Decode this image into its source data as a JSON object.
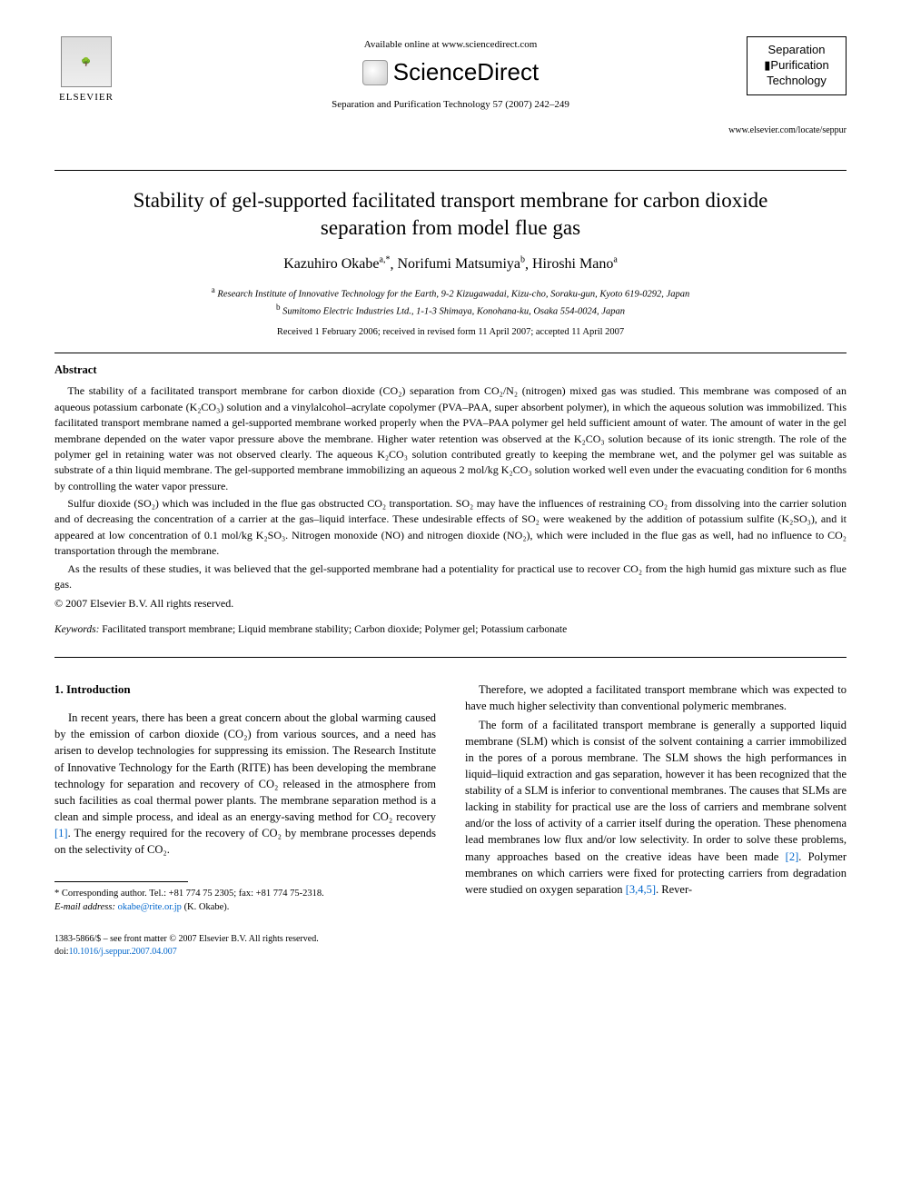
{
  "header": {
    "availableText": "Available online at www.sciencedirect.com",
    "scienceDirect": "ScienceDirect",
    "elsevierLabel": "ELSEVIER",
    "journalRef": "Separation and Purification Technology 57 (2007) 242–249",
    "journalBoxLine1": "Separation",
    "journalBoxLine2": "▮Purification",
    "journalBoxLine3": "Technology",
    "journalUrl": "www.elsevier.com/locate/seppur"
  },
  "title": "Stability of gel-supported facilitated transport membrane for carbon dioxide separation from model flue gas",
  "authors": [
    {
      "name": "Kazuhiro Okabe",
      "marks": "a,*"
    },
    {
      "name": "Norifumi Matsumiya",
      "marks": "b"
    },
    {
      "name": "Hiroshi Mano",
      "marks": "a"
    }
  ],
  "affiliations": [
    {
      "mark": "a",
      "text": "Research Institute of Innovative Technology for the Earth, 9-2 Kizugawadai, Kizu-cho, Soraku-gun, Kyoto 619-0292, Japan"
    },
    {
      "mark": "b",
      "text": "Sumitomo Electric Industries Ltd., 1-1-3 Shimaya, Konohana-ku, Osaka 554-0024, Japan"
    }
  ],
  "received": "Received 1 February 2006; received in revised form 11 April 2007; accepted 11 April 2007",
  "abstractLabel": "Abstract",
  "abstractParas": [
    "The stability of a facilitated transport membrane for carbon dioxide (CO₂) separation from CO₂/N₂ (nitrogen) mixed gas was studied. This membrane was composed of an aqueous potassium carbonate (K₂CO₃) solution and a vinylalcohol–acrylate copolymer (PVA–PAA, super absorbent polymer), in which the aqueous solution was immobilized. This facilitated transport membrane named a gel-supported membrane worked properly when the PVA–PAA polymer gel held sufficient amount of water. The amount of water in the gel membrane depended on the water vapor pressure above the membrane. Higher water retention was observed at the K₂CO₃ solution because of its ionic strength. The role of the polymer gel in retaining water was not observed clearly. The aqueous K₂CO₃ solution contributed greatly to keeping the membrane wet, and the polymer gel was suitable as substrate of a thin liquid membrane. The gel-supported membrane immobilizing an aqueous 2 mol/kg K₂CO₃ solution worked well even under the evacuating condition for 6 months by controlling the water vapor pressure.",
    "Sulfur dioxide (SO₂) which was included in the flue gas obstructed CO₂ transportation. SO₂ may have the influences of restraining CO₂ from dissolving into the carrier solution and of decreasing the concentration of a carrier at the gas–liquid interface. These undesirable effects of SO₂ were weakened by the addition of potassium sulfite (K₂SO₃), and it appeared at low concentration of 0.1 mol/kg K₂SO₃. Nitrogen monoxide (NO) and nitrogen dioxide (NO₂), which were included in the flue gas as well, had no influence to CO₂ transportation through the membrane.",
    "As the results of these studies, it was believed that the gel-supported membrane had a potentiality for practical use to recover CO₂ from the high humid gas mixture such as flue gas."
  ],
  "copyright": "© 2007 Elsevier B.V. All rights reserved.",
  "keywordsLabel": "Keywords:",
  "keywords": "Facilitated transport membrane; Liquid membrane stability; Carbon dioxide; Polymer gel; Potassium carbonate",
  "introHeading": "1. Introduction",
  "introCol1": "In recent years, there has been a great concern about the global warming caused by the emission of carbon dioxide (CO₂) from various sources, and a need has arisen to develop technologies for suppressing its emission. The Research Institute of Innovative Technology for the Earth (RITE) has been developing the membrane technology for separation and recovery of CO₂ released in the atmosphere from such facilities as coal thermal power plants. The membrane separation method is a clean and simple process, and ideal as an energy-saving method for CO₂ recovery ",
  "introCol1Cite": "[1]",
  "introCol1b": ". The energy required for the recovery of CO₂ by membrane processes depends on the selectivity of CO₂.",
  "introCol2a": "Therefore, we adopted a facilitated transport membrane which was expected to have much higher selectivity than conventional polymeric membranes.",
  "introCol2b": "The form of a facilitated transport membrane is generally a supported liquid membrane (SLM) which is consist of the solvent containing a carrier immobilized in the pores of a porous membrane. The SLM shows the high performances in liquid–liquid extraction and gas separation, however it has been recognized that the stability of a SLM is inferior to conventional membranes. The causes that SLMs are lacking in stability for practical use are the loss of carriers and membrane solvent and/or the loss of activity of a carrier itself during the operation. These phenomena lead membranes low flux and/or low selectivity. In order to solve these problems, many approaches based on the creative ideas have been made ",
  "introCol2Cite1": "[2]",
  "introCol2c": ". Polymer membranes on which carriers were fixed for protecting carriers from degradation were studied on oxygen separation ",
  "introCol2Cite2": "[3,4,5]",
  "introCol2d": ". Rever-",
  "footnote": {
    "corr": "* Corresponding author. Tel.: +81 774 75 2305; fax: +81 774 75-2318.",
    "emailLabel": "E-mail address:",
    "email": "okabe@rite.or.jp",
    "emailSuffix": "(K. Okabe)."
  },
  "footerMeta": {
    "line1": "1383-5866/$ – see front matter © 2007 Elsevier B.V. All rights reserved.",
    "doiLabel": "doi:",
    "doi": "10.1016/j.seppur.2007.04.007"
  },
  "style": {
    "linkColor": "#0066cc",
    "bodyFontSize": 13,
    "titleFontSize": 23,
    "background": "#ffffff"
  }
}
